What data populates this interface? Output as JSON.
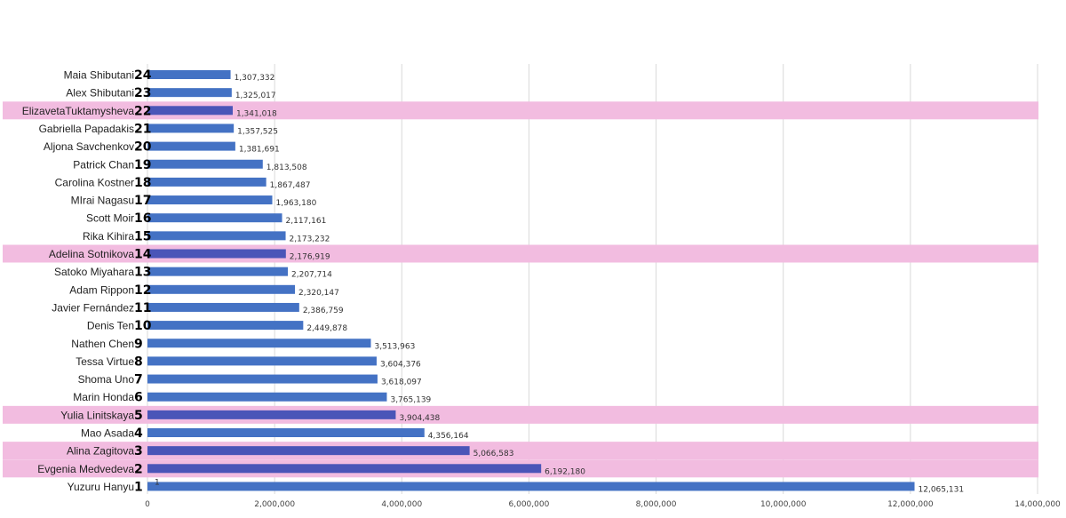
{
  "colors": {
    "bar": "#4472C4",
    "highlight": "#F2BCE0",
    "grid": "#D9D9D9"
  },
  "chart_data": {
    "type": "bar",
    "orientation": "horizontal",
    "title": "",
    "xlabel": "",
    "ylabel": "",
    "xlim": [
      0,
      14000000
    ],
    "x_ticks": [
      "0",
      "2,000,000",
      "4,000,000",
      "6,000,000",
      "8,000,000",
      "10,000,000",
      "12,000,000",
      "14,000,000"
    ],
    "grid": true,
    "categories": [
      {
        "name": "Maia Shibutani",
        "rank": "24",
        "value": 1307332,
        "label": "1,307,332",
        "highlight": false
      },
      {
        "name": "Alex Shibutani",
        "rank": "23",
        "value": 1325017,
        "label": "1,325,017",
        "highlight": false
      },
      {
        "name": "ElizavetaTuktamysheva",
        "rank": "22",
        "value": 1341018,
        "label": "1,341,018",
        "highlight": true
      },
      {
        "name": "Gabriella Papadakis",
        "rank": "21",
        "value": 1357525,
        "label": "1,357,525",
        "highlight": false
      },
      {
        "name": "Aljona Savchenkov",
        "rank": "20",
        "value": 1381691,
        "label": "1,381,691",
        "highlight": false
      },
      {
        "name": "Patrick Chan",
        "rank": "19",
        "value": 1813508,
        "label": "1,813,508",
        "highlight": false
      },
      {
        "name": "Carolina Kostner",
        "rank": "18",
        "value": 1867487,
        "label": "1,867,487",
        "highlight": false
      },
      {
        "name": "MIrai Nagasu",
        "rank": "17",
        "value": 1963180,
        "label": "1,963,180",
        "highlight": false
      },
      {
        "name": "Scott Moir",
        "rank": "16",
        "value": 2117161,
        "label": "2,117,161",
        "highlight": false
      },
      {
        "name": "Rika Kihira",
        "rank": "15",
        "value": 2173232,
        "label": "2,173,232",
        "highlight": false
      },
      {
        "name": "Adelina Sotnikova",
        "rank": "14",
        "value": 2176919,
        "label": "2,176,919",
        "highlight": true
      },
      {
        "name": "Satoko Miyahara",
        "rank": "13",
        "value": 2207714,
        "label": "2,207,714",
        "highlight": false
      },
      {
        "name": "Adam Rippon",
        "rank": "12",
        "value": 2320147,
        "label": "2,320,147",
        "highlight": false
      },
      {
        "name": "Javier Fernández",
        "rank": "11",
        "value": 2386759,
        "label": "2,386,759",
        "highlight": false
      },
      {
        "name": "Denis Ten",
        "rank": "10",
        "value": 2449878,
        "label": "2,449,878",
        "highlight": false
      },
      {
        "name": "Nathen Chen",
        "rank": "9",
        "value": 3513963,
        "label": "3,513,963",
        "highlight": false
      },
      {
        "name": "Tessa Virtue",
        "rank": "8",
        "value": 3604376,
        "label": "3,604,376",
        "highlight": false
      },
      {
        "name": "Shoma Uno",
        "rank": "7",
        "value": 3618097,
        "label": "3,618,097",
        "highlight": false
      },
      {
        "name": "Marin Honda",
        "rank": "6",
        "value": 3765139,
        "label": "3,765,139",
        "highlight": false
      },
      {
        "name": "Yulia Linitskaya",
        "rank": "5",
        "value": 3904438,
        "label": "3,904,438",
        "highlight": true
      },
      {
        "name": "Mao Asada",
        "rank": "4",
        "value": 4356164,
        "label": "4,356,164",
        "highlight": false
      },
      {
        "name": "Alina Zagitova",
        "rank": "3",
        "value": 5066583,
        "label": "5,066,583",
        "highlight": true
      },
      {
        "name": "Evgenia Medvedeva",
        "rank": "2",
        "value": 6192180,
        "label": "6,192,180",
        "highlight": true
      },
      {
        "name": "Yuzuru Hanyu",
        "rank": "1",
        "value": 12065131,
        "label": "12,065,131",
        "highlight": false
      }
    ],
    "annotations": [
      {
        "text": "1",
        "near": "Yuzuru Hanyu"
      }
    ]
  }
}
